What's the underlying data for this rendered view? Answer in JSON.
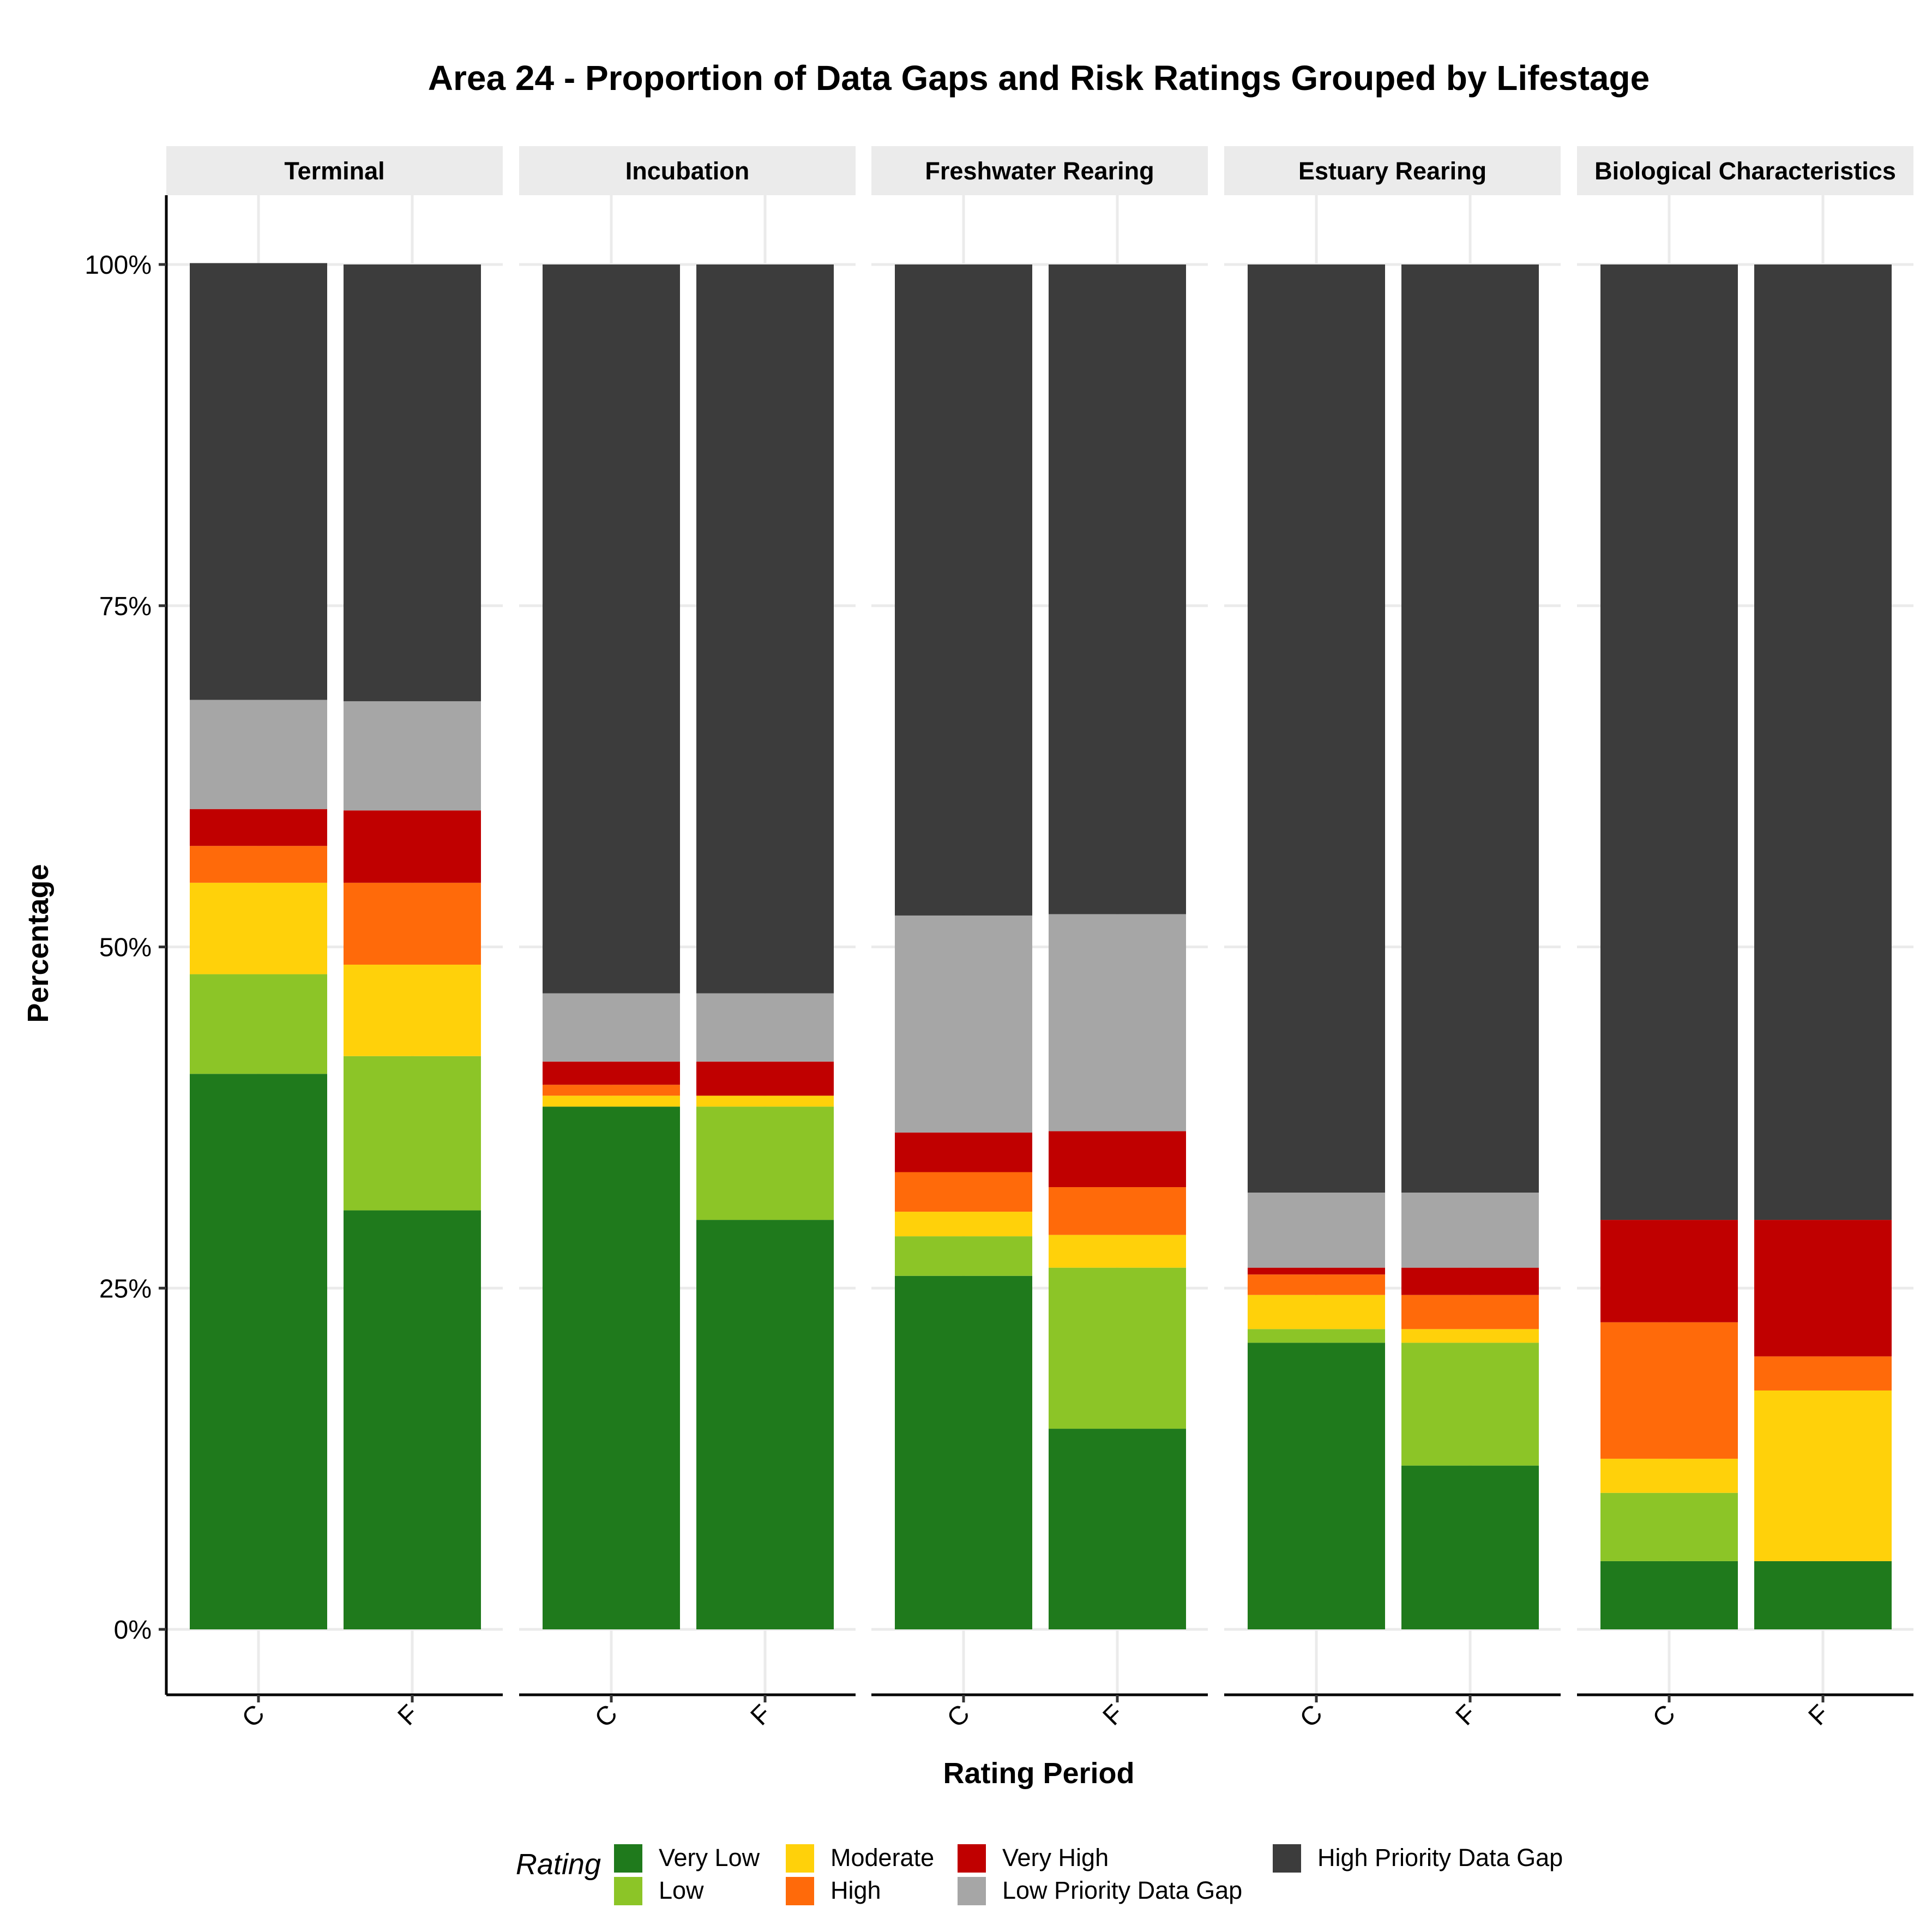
{
  "chart_data": {
    "type": "bar",
    "stacked": true,
    "title": "Area 24 - Proportion of Data Gaps and Risk Ratings Grouped by Lifestage",
    "xlabel": "Rating Period",
    "ylabel": "Percentage",
    "ylim": [
      0,
      100
    ],
    "y_ticks": [
      "0%",
      "25%",
      "50%",
      "75%",
      "100%"
    ],
    "y_tick_values": [
      0,
      25,
      50,
      75,
      100
    ],
    "grid": true,
    "categories": [
      "C",
      "F"
    ],
    "legend": {
      "title": "Rating",
      "position": "bottom",
      "items": [
        {
          "label": "Very Low",
          "color": "#1f7a1c"
        },
        {
          "label": "Low",
          "color": "#8cc527"
        },
        {
          "label": "Moderate",
          "color": "#ffd10a"
        },
        {
          "label": "High",
          "color": "#ff6a0a"
        },
        {
          "label": "Very High",
          "color": "#c00000"
        },
        {
          "label": "Low Priority Data Gap",
          "color": "#a6a6a6"
        },
        {
          "label": "High Priority Data Gap",
          "color": "#3c3c3c"
        }
      ]
    },
    "panels": [
      {
        "facet": "Terminal",
        "bars": [
          {
            "category": "C",
            "values": [
              40.7,
              7.3,
              6.7,
              2.7,
              2.7,
              8.0,
              32.0
            ]
          },
          {
            "category": "F",
            "values": [
              30.7,
              11.3,
              6.7,
              6.0,
              5.3,
              8.0,
              32.0
            ]
          }
        ]
      },
      {
        "facet": "Incubation",
        "bars": [
          {
            "category": "C",
            "values": [
              38.3,
              0.0,
              0.8,
              0.8,
              1.7,
              5.0,
              53.4
            ]
          },
          {
            "category": "F",
            "values": [
              30.0,
              8.3,
              0.8,
              0.0,
              2.5,
              5.0,
              53.4
            ]
          }
        ]
      },
      {
        "facet": "Freshwater Rearing",
        "bars": [
          {
            "category": "C",
            "values": [
              25.9,
              2.9,
              1.8,
              2.9,
              2.9,
              15.9,
              47.7
            ]
          },
          {
            "category": "F",
            "values": [
              14.7,
              11.8,
              2.4,
              3.5,
              4.1,
              15.9,
              47.6
            ]
          }
        ]
      },
      {
        "facet": "Estuary Rearing",
        "bars": [
          {
            "category": "C",
            "values": [
              21.0,
              1.0,
              2.5,
              1.5,
              0.5,
              5.5,
              68.0
            ]
          },
          {
            "category": "F",
            "values": [
              12.0,
              9.0,
              1.0,
              2.5,
              2.0,
              5.5,
              68.0
            ]
          }
        ]
      },
      {
        "facet": "Biological Characteristics",
        "bars": [
          {
            "category": "C",
            "values": [
              5.0,
              5.0,
              2.5,
              10.0,
              7.5,
              0.0,
              70.0
            ]
          },
          {
            "category": "F",
            "values": [
              5.0,
              0.0,
              12.5,
              2.5,
              10.0,
              0.0,
              70.0
            ]
          }
        ]
      }
    ]
  }
}
